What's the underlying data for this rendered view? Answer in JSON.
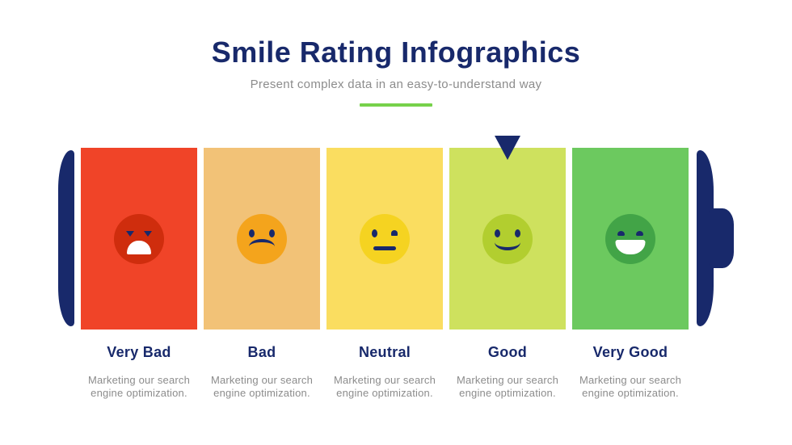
{
  "header": {
    "title": "Smile Rating Infographics",
    "subtitle": "Present complex data in an easy-to-understand way"
  },
  "theme": {
    "navy": "#18296B",
    "text_gray": "#8C8C8C",
    "underline_green": "#77D14B",
    "background": "#FFFFFF"
  },
  "battery": {
    "icon": "battery-gauge-icon"
  },
  "pointer": {
    "icon": "triangle-down-icon",
    "selected_label": "Good",
    "selected_index": 3
  },
  "ratings": [
    {
      "label": "Very Bad",
      "description": "Marketing our search engine optimization.",
      "mood": "very-bad",
      "face_icon": "very-bad-face-icon",
      "panel_color": "#F04428",
      "face_color": "#CF2D0D"
    },
    {
      "label": "Bad",
      "description": "Marketing our search engine optimization.",
      "mood": "bad",
      "face_icon": "bad-face-icon",
      "panel_color": "#F2C277",
      "face_color": "#F4A41C"
    },
    {
      "label": "Neutral",
      "description": "Marketing our search engine optimization.",
      "mood": "neutral",
      "face_icon": "neutral-face-icon",
      "panel_color": "#FADD60",
      "face_color": "#F5D321"
    },
    {
      "label": "Good",
      "description": "Marketing our search engine optimization.",
      "mood": "good",
      "face_icon": "good-face-icon",
      "panel_color": "#CEE15E",
      "face_color": "#B2CE2F"
    },
    {
      "label": "Very Good",
      "description": "Marketing our search engine optimization.",
      "mood": "very-good",
      "face_icon": "very-good-face-icon",
      "panel_color": "#6CC95F",
      "face_color": "#42A447"
    }
  ]
}
